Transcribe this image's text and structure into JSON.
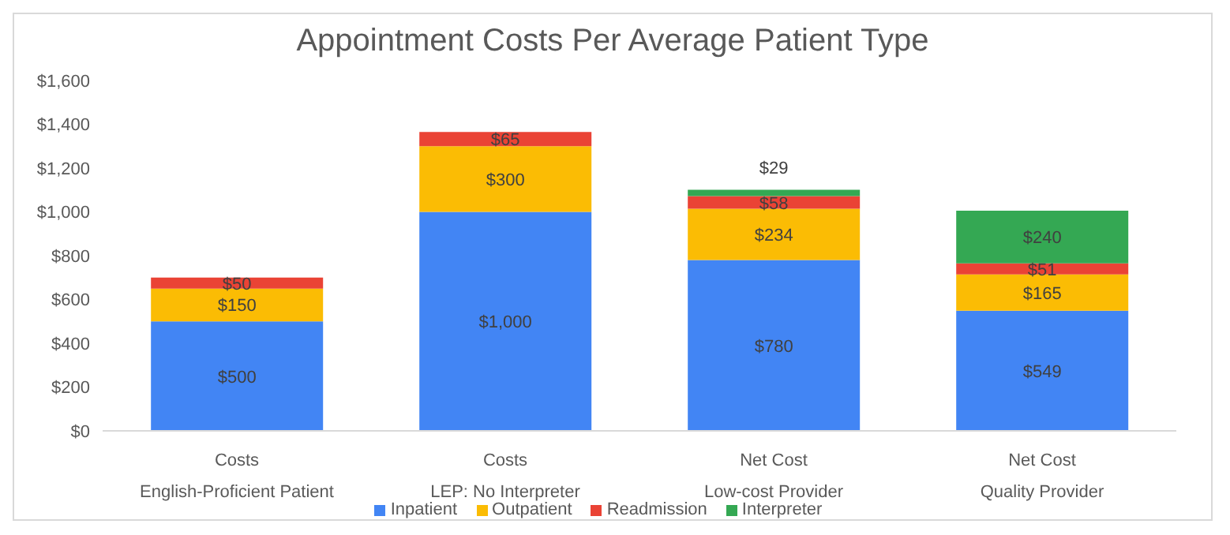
{
  "chart_data": {
    "type": "bar",
    "title": "Appointment Costs Per Average Patient Type",
    "stacked": true,
    "categories": [
      "Costs\nEnglish-Proficient Patient",
      "Costs\nLEP: No Interpreter",
      "Net Cost\nLow-cost Provider",
      "Net Cost\nQuality Provider"
    ],
    "series": [
      {
        "name": "Inpatient",
        "color": "#4285f4",
        "values": [
          500,
          1000,
          780,
          549
        ],
        "value_labels": [
          "$500",
          "$1,000",
          "$780",
          "$549"
        ]
      },
      {
        "name": "Outpatient",
        "color": "#fbbc04",
        "values": [
          150,
          300,
          234,
          165
        ],
        "value_labels": [
          "$150",
          "$300",
          "$234",
          "$165"
        ]
      },
      {
        "name": "Readmission",
        "color": "#ea4335",
        "values": [
          50,
          65,
          58,
          51
        ],
        "value_labels": [
          "$50",
          "$65",
          "$58",
          "$51"
        ]
      },
      {
        "name": "Interpreter",
        "color": "#34a853",
        "values": [
          null,
          null,
          29,
          240
        ],
        "value_labels": [
          null,
          null,
          "$29",
          "$240"
        ]
      }
    ],
    "ylim": [
      0,
      1600
    ],
    "yticks": [
      {
        "value": 0,
        "label": "$0"
      },
      {
        "value": 200,
        "label": "$200"
      },
      {
        "value": 400,
        "label": "$400"
      },
      {
        "value": 600,
        "label": "$600"
      },
      {
        "value": 800,
        "label": "$800"
      },
      {
        "value": 1000,
        "label": "$1,000"
      },
      {
        "value": 1200,
        "label": "$1,200"
      },
      {
        "value": 1400,
        "label": "$1,400"
      },
      {
        "value": 1600,
        "label": "$1,600"
      }
    ],
    "legend": "bottom",
    "grid": false
  }
}
